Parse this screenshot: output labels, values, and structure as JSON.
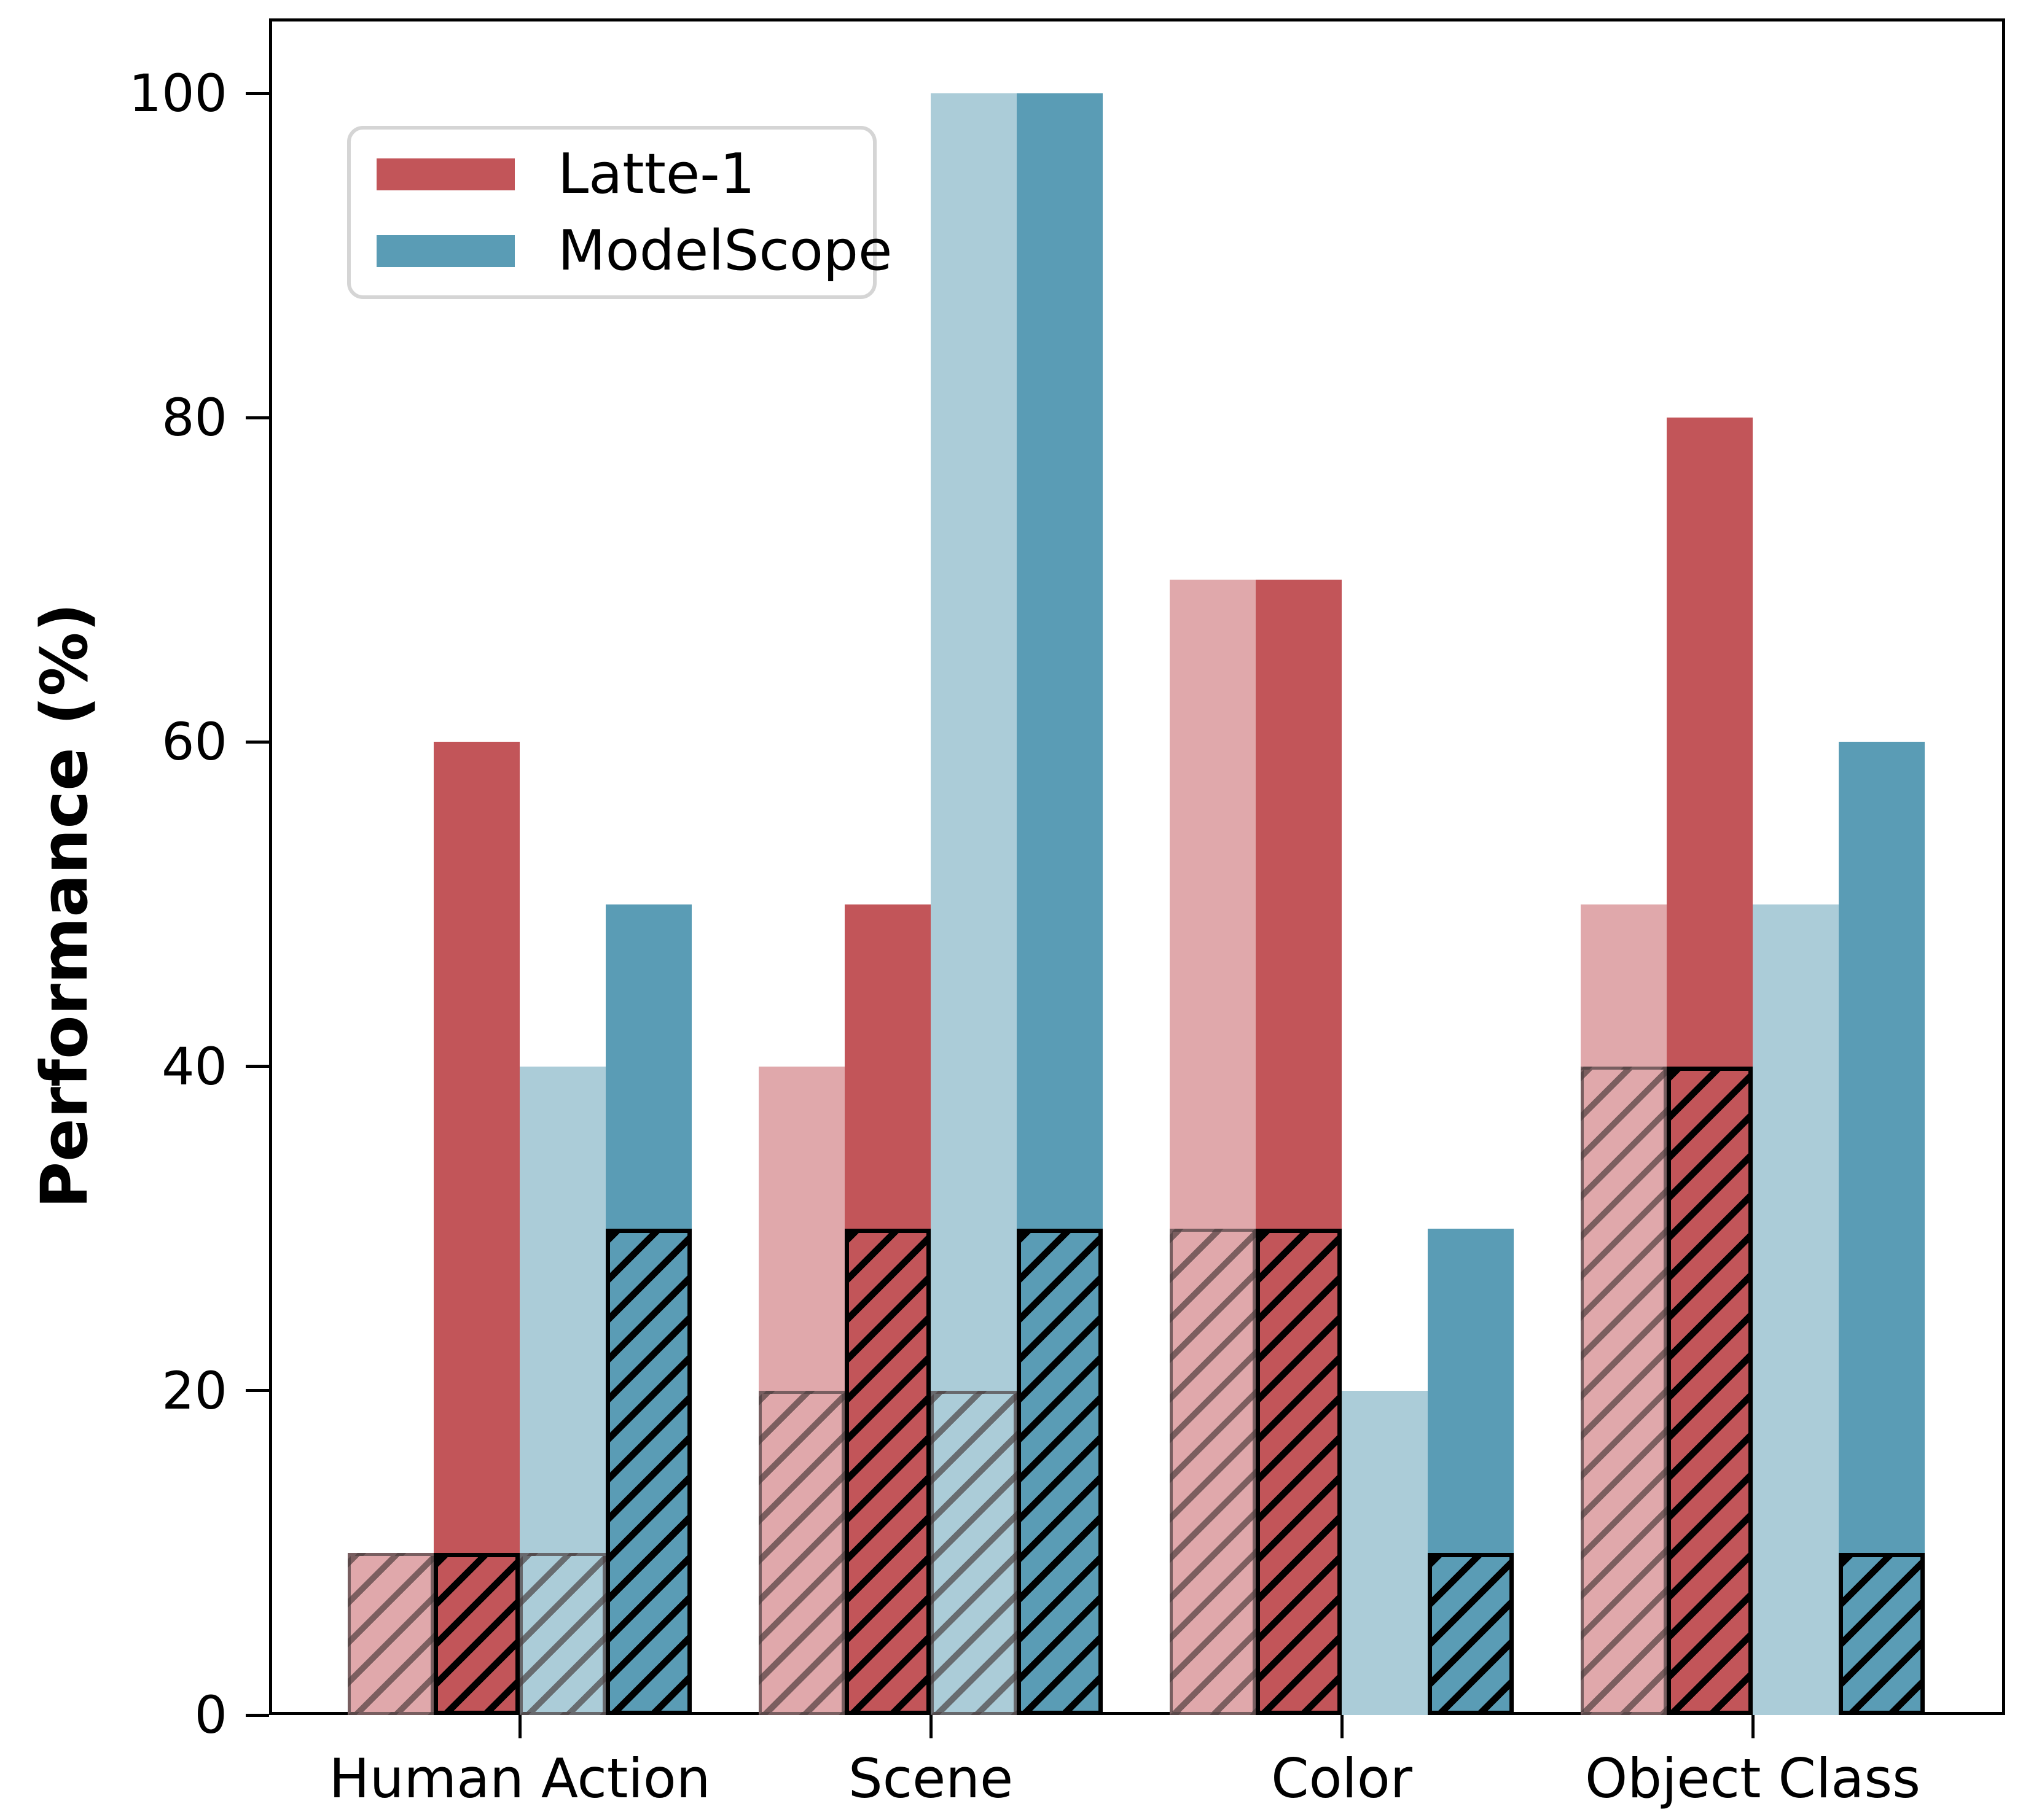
{
  "figure": {
    "background": "#ffffff"
  },
  "y_axis": {
    "label": "Performance (%)",
    "ticks": [
      0,
      20,
      40,
      60,
      80,
      100
    ],
    "range": [
      0,
      105
    ]
  },
  "x_axis": {
    "categories": [
      "Human Action",
      "Scene",
      "Color",
      "Object Class"
    ]
  },
  "legend": {
    "items": [
      {
        "label": "Latte-1",
        "color": "#c25559"
      },
      {
        "label": "ModelScope",
        "color": "#5a9cb5"
      }
    ]
  },
  "colors": {
    "latte1_solid": "#c25559",
    "latte1_light": "#e0a8ab",
    "modelscope_solid": "#5a9cb5",
    "modelscope_light": "#abccd8",
    "hatch_black": "#000000",
    "hatch_gray": "rgba(62,48,48,0.62)",
    "axis": "#000000",
    "legend_border": "#d5d5d5"
  },
  "chart_data": {
    "type": "bar",
    "title": "",
    "xlabel": "",
    "ylabel": "Performance (%)",
    "ylim": [
      0,
      105
    ],
    "grid": false,
    "legend_position": "upper left",
    "categories": [
      "Human Action",
      "Scene",
      "Color",
      "Object Class"
    ],
    "series": [
      {
        "key": "latte1-light",
        "name": "Latte-1 light",
        "legend_label": null,
        "color": "#e0a8ab",
        "values": [
          10,
          40,
          70,
          50
        ],
        "hatched_portion_values": [
          10,
          20,
          30,
          40
        ],
        "hatch_outline": "gray"
      },
      {
        "key": "latte1-solid",
        "name": "Latte-1",
        "legend_label": "Latte-1",
        "color": "#c25559",
        "values": [
          60,
          50,
          70,
          80
        ],
        "hatched_portion_values": [
          10,
          30,
          30,
          40
        ],
        "hatch_outline": "black"
      },
      {
        "key": "modelscope-light",
        "name": "ModelScope light",
        "legend_label": null,
        "color": "#abccd8",
        "values": [
          40,
          100,
          20,
          50
        ],
        "hatched_portion_values": [
          10,
          20,
          0,
          0
        ],
        "hatch_outline": "gray"
      },
      {
        "key": "modelscope-solid",
        "name": "ModelScope",
        "legend_label": "ModelScope",
        "color": "#5a9cb5",
        "values": [
          50,
          100,
          30,
          60
        ],
        "hatched_portion_values": [
          30,
          30,
          10,
          10
        ],
        "hatch_outline": "black"
      }
    ]
  }
}
